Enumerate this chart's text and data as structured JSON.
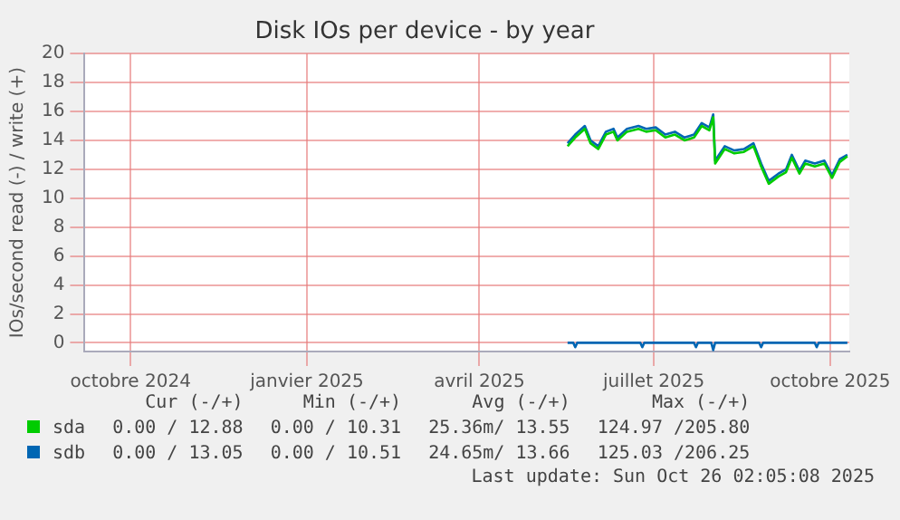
{
  "chart_data": {
    "type": "line",
    "title": "Disk IOs per device - by year",
    "ylabel": "IOs/second read (-) / write (+)",
    "xlim": [
      "2024-09-22",
      "2025-10-26"
    ],
    "xticks": [
      {
        "value": "2024-10-16",
        "label": "octobre 2024"
      },
      {
        "value": "2025-01-16",
        "label": "janvier 2025"
      },
      {
        "value": "2025-04-16",
        "label": "avril 2025"
      },
      {
        "value": "2025-07-16",
        "label": "juillet 2025"
      },
      {
        "value": "2025-10-16",
        "label": "octobre 2025"
      }
    ],
    "ylim": [
      -0.6,
      20
    ],
    "yticks": [
      0,
      2,
      4,
      6,
      8,
      10,
      12,
      14,
      16,
      18,
      20
    ],
    "grid": true,
    "legend": "bottom left",
    "marker": "none",
    "line_style": "solid",
    "x": [
      "2025-06-01",
      "2025-06-05",
      "2025-06-10",
      "2025-06-13",
      "2025-06-17",
      "2025-06-21",
      "2025-06-25",
      "2025-06-27",
      "2025-07-02",
      "2025-07-08",
      "2025-07-12",
      "2025-07-17",
      "2025-07-22",
      "2025-07-27",
      "2025-08-01",
      "2025-08-06",
      "2025-08-10",
      "2025-08-14",
      "2025-08-16",
      "2025-08-17",
      "2025-08-22",
      "2025-08-27",
      "2025-09-01",
      "2025-09-06",
      "2025-09-10",
      "2025-09-14",
      "2025-09-19",
      "2025-09-23",
      "2025-09-26",
      "2025-09-30",
      "2025-10-03",
      "2025-10-08",
      "2025-10-13",
      "2025-10-17",
      "2025-10-21",
      "2025-10-25"
    ],
    "series": [
      {
        "name": "sda",
        "color": "#00cc00",
        "values": [
          13.6,
          14.2,
          14.8,
          13.8,
          13.4,
          14.4,
          14.6,
          14.0,
          14.6,
          14.8,
          14.6,
          14.7,
          14.2,
          14.4,
          14.0,
          14.2,
          15.0,
          14.7,
          15.6,
          12.4,
          13.4,
          13.1,
          13.2,
          13.6,
          12.2,
          11.0,
          11.5,
          11.8,
          12.8,
          11.7,
          12.4,
          12.2,
          12.4,
          11.4,
          12.5,
          12.9
        ]
      },
      {
        "name": "sdb",
        "color": "#0066b3",
        "values": [
          13.8,
          14.4,
          15.0,
          14.0,
          13.6,
          14.6,
          14.8,
          14.2,
          14.8,
          15.0,
          14.8,
          14.9,
          14.4,
          14.6,
          14.2,
          14.4,
          15.2,
          14.9,
          15.8,
          12.6,
          13.6,
          13.3,
          13.4,
          13.8,
          12.4,
          11.2,
          11.7,
          12.0,
          13.0,
          11.9,
          12.6,
          12.4,
          12.6,
          11.6,
          12.7,
          13.0
        ]
      },
      {
        "color": "#0066b3",
        "x": [
          "2025-06-01",
          "2025-06-04",
          "2025-06-05",
          "2025-06-06",
          "2025-07-09",
          "2025-07-10",
          "2025-07-11",
          "2025-08-06",
          "2025-08-07",
          "2025-08-08",
          "2025-08-15",
          "2025-08-16",
          "2025-08-17",
          "2025-09-09",
          "2025-09-10",
          "2025-09-11",
          "2025-10-08",
          "2025-10-09",
          "2025-10-10",
          "2025-10-25"
        ],
        "values": [
          0,
          0,
          -0.3,
          0,
          0,
          -0.3,
          0,
          0,
          -0.3,
          0,
          0,
          -0.5,
          0,
          0,
          -0.3,
          0,
          0,
          -0.3,
          0,
          0
        ]
      }
    ],
    "annotations": [
      "Cur (-/+)",
      "Min (-/+)",
      "Avg (-/+)",
      "Max (-/+)",
      "0.00 / 12.88",
      "0.00 / 10.31",
      "25.36m/ 13.55",
      "124.97 /205.80",
      "0.00 / 13.05",
      "0.00 / 10.51",
      "24.65m/ 13.66",
      "125.03 /206.25",
      "Last update: Sun Oct 26 02:05:08 2025"
    ]
  }
}
